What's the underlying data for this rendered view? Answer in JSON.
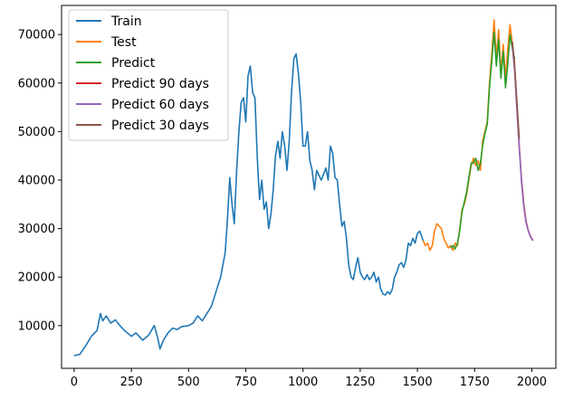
{
  "chart_data": {
    "type": "line",
    "title": "",
    "xlabel": "",
    "ylabel": "",
    "xlim": [
      -55,
      2105
    ],
    "ylim": [
      1200,
      76000
    ],
    "x_ticks": [
      0,
      250,
      500,
      750,
      1000,
      1250,
      1500,
      1750,
      2000
    ],
    "y_ticks": [
      10000,
      20000,
      30000,
      40000,
      50000,
      60000,
      70000
    ],
    "grid": false,
    "legend_position": "upper-left",
    "series": [
      {
        "name": "Train",
        "color": "#1f77b4",
        "points": [
          [
            0,
            3800
          ],
          [
            25,
            4100
          ],
          [
            50,
            5800
          ],
          [
            75,
            7800
          ],
          [
            100,
            9000
          ],
          [
            115,
            12500
          ],
          [
            125,
            11000
          ],
          [
            140,
            12000
          ],
          [
            160,
            10500
          ],
          [
            180,
            11200
          ],
          [
            200,
            10000
          ],
          [
            220,
            9000
          ],
          [
            250,
            7800
          ],
          [
            270,
            8500
          ],
          [
            300,
            7000
          ],
          [
            325,
            8000
          ],
          [
            350,
            10000
          ],
          [
            365,
            7500
          ],
          [
            375,
            5200
          ],
          [
            390,
            7000
          ],
          [
            410,
            8500
          ],
          [
            430,
            9500
          ],
          [
            450,
            9200
          ],
          [
            470,
            9800
          ],
          [
            500,
            10000
          ],
          [
            520,
            10500
          ],
          [
            540,
            12000
          ],
          [
            560,
            11000
          ],
          [
            580,
            12500
          ],
          [
            600,
            14000
          ],
          [
            620,
            17000
          ],
          [
            640,
            20000
          ],
          [
            660,
            25000
          ],
          [
            670,
            32000
          ],
          [
            680,
            40500
          ],
          [
            690,
            35000
          ],
          [
            700,
            31000
          ],
          [
            710,
            42000
          ],
          [
            720,
            50000
          ],
          [
            730,
            56000
          ],
          [
            740,
            57000
          ],
          [
            750,
            52000
          ],
          [
            760,
            61500
          ],
          [
            770,
            63500
          ],
          [
            780,
            58000
          ],
          [
            790,
            57000
          ],
          [
            800,
            45000
          ],
          [
            810,
            36000
          ],
          [
            820,
            40000
          ],
          [
            830,
            34000
          ],
          [
            840,
            35500
          ],
          [
            850,
            30000
          ],
          [
            860,
            33000
          ],
          [
            870,
            38000
          ],
          [
            880,
            45000
          ],
          [
            890,
            48000
          ],
          [
            900,
            44500
          ],
          [
            910,
            50000
          ],
          [
            920,
            47000
          ],
          [
            930,
            42000
          ],
          [
            940,
            48000
          ],
          [
            950,
            58000
          ],
          [
            960,
            65000
          ],
          [
            970,
            66000
          ],
          [
            980,
            62000
          ],
          [
            990,
            56000
          ],
          [
            1000,
            47000
          ],
          [
            1010,
            47000
          ],
          [
            1020,
            50000
          ],
          [
            1030,
            44000
          ],
          [
            1040,
            42000
          ],
          [
            1050,
            38000
          ],
          [
            1060,
            42000
          ],
          [
            1080,
            40000
          ],
          [
            1100,
            42500
          ],
          [
            1110,
            40000
          ],
          [
            1120,
            47000
          ],
          [
            1130,
            45500
          ],
          [
            1140,
            40500
          ],
          [
            1150,
            40000
          ],
          [
            1160,
            35000
          ],
          [
            1170,
            30500
          ],
          [
            1180,
            31500
          ],
          [
            1190,
            28000
          ],
          [
            1200,
            22500
          ],
          [
            1210,
            20000
          ],
          [
            1220,
            19500
          ],
          [
            1230,
            22000
          ],
          [
            1240,
            24000
          ],
          [
            1250,
            21000
          ],
          [
            1260,
            20000
          ],
          [
            1270,
            19500
          ],
          [
            1280,
            20500
          ],
          [
            1290,
            19500
          ],
          [
            1300,
            20000
          ],
          [
            1310,
            21000
          ],
          [
            1320,
            19000
          ],
          [
            1330,
            20000
          ],
          [
            1340,
            17500
          ],
          [
            1350,
            16500
          ],
          [
            1360,
            16300
          ],
          [
            1370,
            17000
          ],
          [
            1380,
            16500
          ],
          [
            1390,
            17500
          ],
          [
            1400,
            20000
          ],
          [
            1410,
            21000
          ],
          [
            1420,
            22500
          ],
          [
            1430,
            23000
          ],
          [
            1440,
            22000
          ],
          [
            1450,
            23500
          ],
          [
            1460,
            27000
          ],
          [
            1470,
            26500
          ],
          [
            1480,
            28000
          ],
          [
            1490,
            27000
          ],
          [
            1500,
            29000
          ],
          [
            1510,
            29500
          ],
          [
            1518,
            28500
          ],
          [
            1525,
            27500
          ]
        ]
      },
      {
        "name": "Test",
        "color": "#ff7f0e",
        "points": [
          [
            1525,
            27500
          ],
          [
            1535,
            26500
          ],
          [
            1545,
            27000
          ],
          [
            1555,
            25500
          ],
          [
            1565,
            26500
          ],
          [
            1575,
            29500
          ],
          [
            1585,
            31000
          ],
          [
            1595,
            30500
          ],
          [
            1605,
            30000
          ],
          [
            1615,
            28000
          ],
          [
            1625,
            27000
          ],
          [
            1635,
            26000
          ],
          [
            1645,
            26500
          ],
          [
            1655,
            25500
          ],
          [
            1665,
            27000
          ],
          [
            1675,
            26500
          ],
          [
            1685,
            30000
          ],
          [
            1695,
            34000
          ],
          [
            1705,
            35000
          ],
          [
            1715,
            37000
          ],
          [
            1725,
            40000
          ],
          [
            1735,
            43000
          ],
          [
            1745,
            44500
          ],
          [
            1755,
            43000
          ],
          [
            1765,
            44000
          ],
          [
            1775,
            42000
          ],
          [
            1785,
            48000
          ],
          [
            1795,
            50000
          ],
          [
            1805,
            52000
          ],
          [
            1815,
            60000
          ],
          [
            1825,
            66000
          ],
          [
            1835,
            73000
          ],
          [
            1845,
            65000
          ],
          [
            1855,
            71000
          ],
          [
            1865,
            62000
          ],
          [
            1875,
            68000
          ],
          [
            1885,
            61000
          ],
          [
            1895,
            67000
          ],
          [
            1905,
            72000
          ],
          [
            1915,
            68000
          ],
          [
            1925,
            64000
          ]
        ]
      },
      {
        "name": "Predict",
        "color": "#2ca02c",
        "points": [
          [
            1645,
            26000
          ],
          [
            1655,
            26500
          ],
          [
            1665,
            25800
          ],
          [
            1675,
            27000
          ],
          [
            1685,
            29500
          ],
          [
            1695,
            33500
          ],
          [
            1705,
            35500
          ],
          [
            1715,
            37500
          ],
          [
            1725,
            40500
          ],
          [
            1735,
            43500
          ],
          [
            1745,
            43500
          ],
          [
            1755,
            44500
          ],
          [
            1765,
            42000
          ],
          [
            1775,
            43500
          ],
          [
            1785,
            47000
          ],
          [
            1795,
            49500
          ],
          [
            1805,
            51500
          ],
          [
            1815,
            59000
          ],
          [
            1825,
            64500
          ],
          [
            1835,
            70500
          ],
          [
            1845,
            63500
          ],
          [
            1855,
            69000
          ],
          [
            1865,
            61000
          ],
          [
            1875,
            66500
          ],
          [
            1885,
            59000
          ],
          [
            1895,
            64000
          ],
          [
            1905,
            70000
          ],
          [
            1915,
            67000
          ],
          [
            1925,
            65000
          ]
        ]
      },
      {
        "name": "Predict 90 days",
        "color": "#d62728",
        "points": [
          [
            1915,
            68000
          ],
          [
            1925,
            63000
          ],
          [
            1935,
            55000
          ],
          [
            1945,
            47000
          ],
          [
            1955,
            40000
          ],
          [
            1965,
            35000
          ],
          [
            1975,
            31500
          ],
          [
            1985,
            29500
          ],
          [
            1995,
            28300
          ],
          [
            2005,
            27600
          ]
        ]
      },
      {
        "name": "Predict 60 days",
        "color": "#9467bd",
        "points": [
          [
            1915,
            67500
          ],
          [
            1925,
            62500
          ],
          [
            1935,
            54500
          ],
          [
            1945,
            46500
          ],
          [
            1955,
            39500
          ],
          [
            1965,
            34500
          ],
          [
            1975,
            31200
          ],
          [
            1985,
            29400
          ],
          [
            1995,
            28200
          ],
          [
            2005,
            27500
          ]
        ]
      },
      {
        "name": "Predict 30 days",
        "color": "#8c564b",
        "points": [
          [
            1915,
            68500
          ],
          [
            1925,
            63500
          ],
          [
            1935,
            56000
          ],
          [
            1945,
            48500
          ]
        ]
      }
    ]
  }
}
